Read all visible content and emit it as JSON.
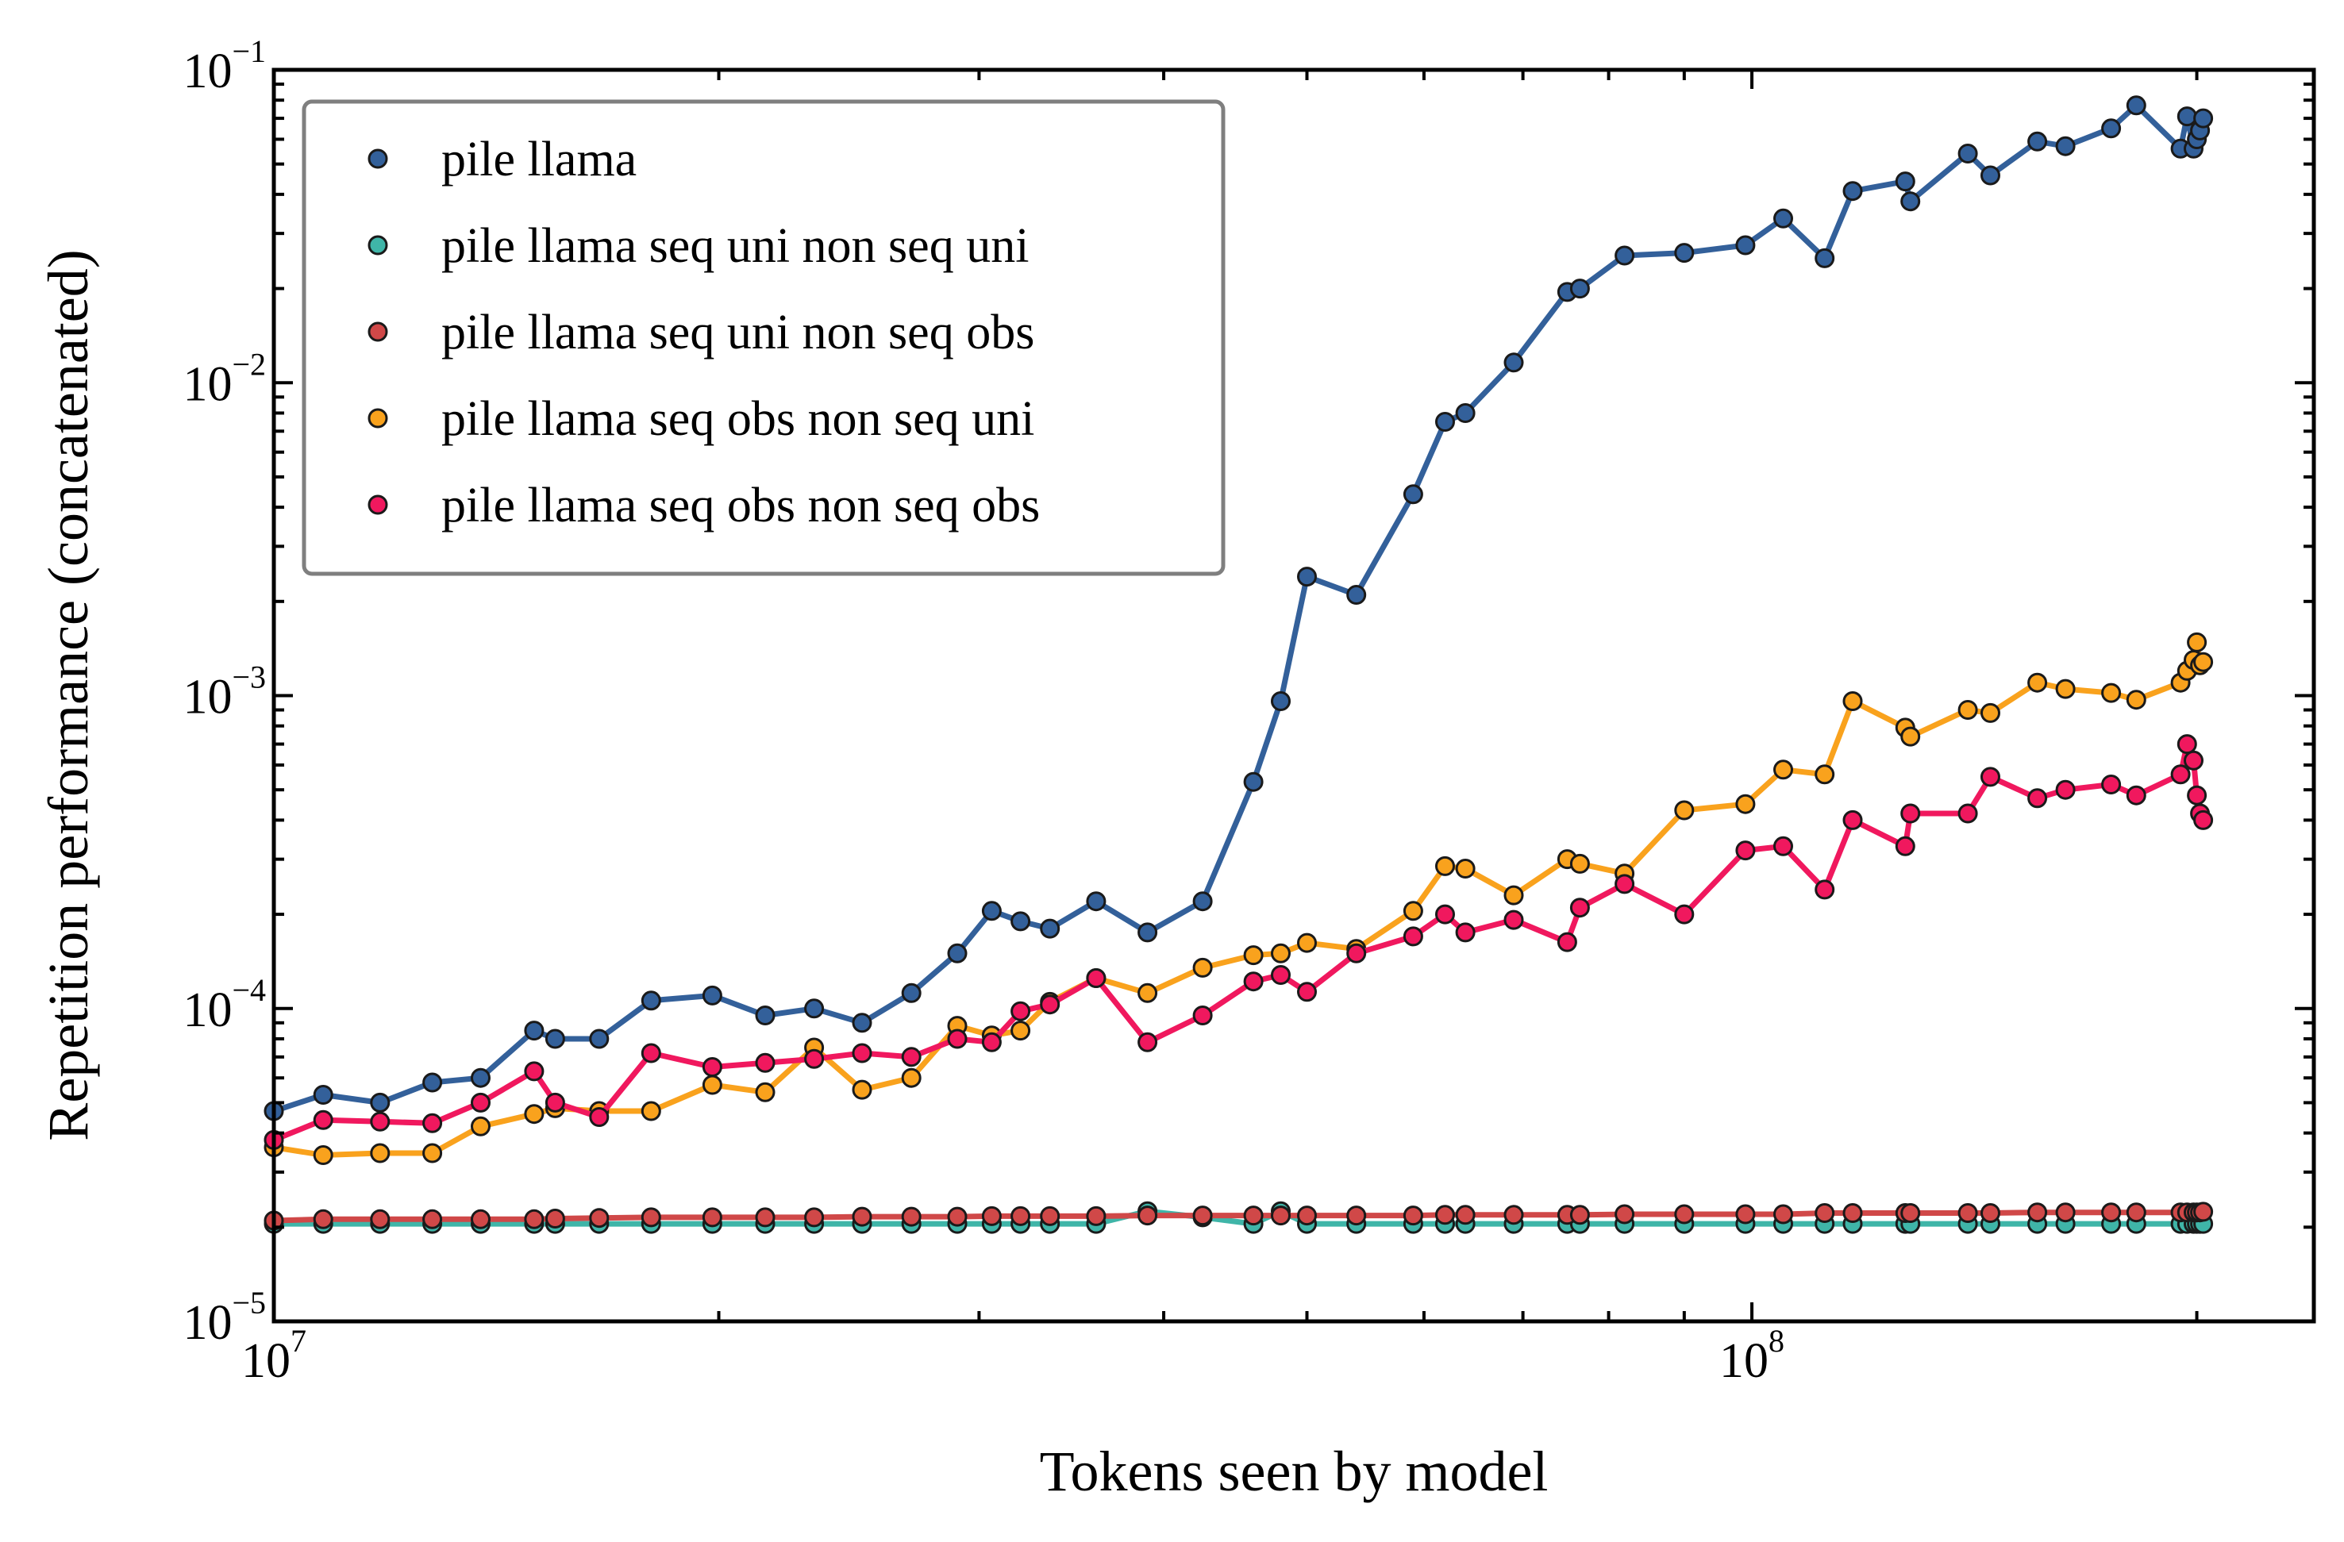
{
  "chart_data": {
    "type": "line",
    "title": "",
    "xlabel": "Tokens seen by model",
    "ylabel": "Repetition performance (concatenated)",
    "x_scale": "log",
    "y_scale": "log",
    "xlim": [
      10000000,
      240000000
    ],
    "ylim": [
      1e-05,
      0.1
    ],
    "x_ticks": [
      {
        "value": 10000000,
        "base": "10",
        "exp": "7"
      },
      {
        "value": 100000000,
        "base": "10",
        "exp": "8"
      }
    ],
    "y_ticks": [
      {
        "value": 1e-05,
        "base": "10",
        "exp": "−5"
      },
      {
        "value": 0.0001,
        "base": "10",
        "exp": "−4"
      },
      {
        "value": 0.001,
        "base": "10",
        "exp": "−3"
      },
      {
        "value": 0.01,
        "base": "10",
        "exp": "−2"
      },
      {
        "value": 0.1,
        "base": "10",
        "exp": "−1"
      }
    ],
    "grid": false,
    "legend_position": "top-left",
    "x": [
      10000000,
      10800000,
      11800000,
      12800000,
      13800000,
      15000000,
      15500000,
      16600000,
      18000000,
      19800000,
      21500000,
      23200000,
      25000000,
      27000000,
      29000000,
      30600000,
      32000000,
      33500000,
      36000000,
      39000000,
      42500000,
      46000000,
      48000000,
      50000000,
      54000000,
      59000000,
      62000000,
      64000000,
      69000000,
      75000000,
      76500000,
      82000000,
      90000000,
      99000000,
      105000000,
      112000000,
      117000000,
      127000000,
      128000000,
      140000000,
      145000000,
      156000000,
      163000000,
      175000000,
      182000000,
      195000000,
      197000000,
      199000000,
      200000000,
      201000000,
      202000000
    ],
    "series": [
      {
        "name": "pile llama",
        "color": "#33609a",
        "values": [
          4.7e-05,
          5.3e-05,
          5e-05,
          5.8e-05,
          6e-05,
          8.5e-05,
          8e-05,
          8e-05,
          0.000106,
          0.00011,
          9.5e-05,
          0.0001,
          9e-05,
          0.000112,
          0.00015,
          0.000205,
          0.00019,
          0.00018,
          0.00022,
          0.000175,
          0.00022,
          0.00053,
          0.00096,
          0.0024,
          0.0021,
          0.0044,
          0.0075,
          0.008,
          0.0116,
          0.0195,
          0.02,
          0.0255,
          0.026,
          0.0275,
          0.0335,
          0.025,
          0.041,
          0.044,
          0.038,
          0.054,
          0.046,
          0.059,
          0.057,
          0.065,
          0.077,
          0.056,
          0.071,
          0.056,
          0.06,
          0.064,
          0.07
        ]
      },
      {
        "name": "pile llama seq uni non seq uni",
        "color": "#3fb5a8",
        "values": [
          2.05e-05,
          2.05e-05,
          2.05e-05,
          2.05e-05,
          2.05e-05,
          2.05e-05,
          2.05e-05,
          2.05e-05,
          2.05e-05,
          2.05e-05,
          2.05e-05,
          2.05e-05,
          2.05e-05,
          2.05e-05,
          2.05e-05,
          2.05e-05,
          2.05e-05,
          2.05e-05,
          2.05e-05,
          2.25e-05,
          2.15e-05,
          2.05e-05,
          2.25e-05,
          2.05e-05,
          2.05e-05,
          2.05e-05,
          2.05e-05,
          2.05e-05,
          2.05e-05,
          2.05e-05,
          2.05e-05,
          2.05e-05,
          2.05e-05,
          2.05e-05,
          2.05e-05,
          2.05e-05,
          2.05e-05,
          2.05e-05,
          2.05e-05,
          2.05e-05,
          2.05e-05,
          2.05e-05,
          2.05e-05,
          2.05e-05,
          2.05e-05,
          2.05e-05,
          2.05e-05,
          2.05e-05,
          2.05e-05,
          2.05e-05,
          2.05e-05
        ]
      },
      {
        "name": "pile llama seq uni non seq obs",
        "color": "#d04848",
        "values": [
          2.1e-05,
          2.12e-05,
          2.12e-05,
          2.12e-05,
          2.12e-05,
          2.12e-05,
          2.13e-05,
          2.14e-05,
          2.15e-05,
          2.15e-05,
          2.15e-05,
          2.15e-05,
          2.16e-05,
          2.16e-05,
          2.16e-05,
          2.17e-05,
          2.17e-05,
          2.17e-05,
          2.17e-05,
          2.18e-05,
          2.18e-05,
          2.18e-05,
          2.18e-05,
          2.18e-05,
          2.18e-05,
          2.18e-05,
          2.19e-05,
          2.19e-05,
          2.19e-05,
          2.19e-05,
          2.19e-05,
          2.2e-05,
          2.2e-05,
          2.2e-05,
          2.2e-05,
          2.22e-05,
          2.22e-05,
          2.22e-05,
          2.22e-05,
          2.22e-05,
          2.22e-05,
          2.23e-05,
          2.23e-05,
          2.23e-05,
          2.23e-05,
          2.23e-05,
          2.23e-05,
          2.23e-05,
          2.23e-05,
          2.23e-05,
          2.24e-05
        ]
      },
      {
        "name": "pile llama seq obs non seq uni",
        "color": "#f9a21d",
        "values": [
          3.6e-05,
          3.4e-05,
          3.45e-05,
          3.45e-05,
          4.2e-05,
          4.6e-05,
          4.8e-05,
          4.7e-05,
          4.7e-05,
          5.7e-05,
          5.4e-05,
          7.5e-05,
          5.5e-05,
          6e-05,
          8.8e-05,
          8.2e-05,
          8.5e-05,
          0.000105,
          0.000125,
          0.000112,
          0.000135,
          0.000148,
          0.00015,
          0.000162,
          0.000155,
          0.000205,
          0.000285,
          0.00028,
          0.00023,
          0.0003,
          0.00029,
          0.00027,
          0.00043,
          0.00045,
          0.00058,
          0.00056,
          0.00096,
          0.00079,
          0.00074,
          0.0009,
          0.00088,
          0.0011,
          0.00105,
          0.00102,
          0.00097,
          0.0011,
          0.0012,
          0.0013,
          0.00148,
          0.00125,
          0.00128
        ]
      },
      {
        "name": "pile llama seq obs non seq obs",
        "color": "#f0185e",
        "values": [
          3.8e-05,
          4.4e-05,
          4.35e-05,
          4.3e-05,
          5e-05,
          6.3e-05,
          5e-05,
          4.5e-05,
          7.2e-05,
          6.5e-05,
          6.7e-05,
          6.9e-05,
          7.2e-05,
          7e-05,
          8e-05,
          7.8e-05,
          9.8e-05,
          0.000103,
          0.000125,
          7.8e-05,
          9.5e-05,
          0.000122,
          0.000128,
          0.000113,
          0.00015,
          0.00017,
          0.0002,
          0.000175,
          0.000192,
          0.000163,
          0.00021,
          0.00025,
          0.0002,
          0.00032,
          0.00033,
          0.00024,
          0.0004,
          0.00033,
          0.00042,
          0.00042,
          0.00055,
          0.00047,
          0.0005,
          0.00052,
          0.00048,
          0.00056,
          0.0007,
          0.00062,
          0.00048,
          0.00042,
          0.0004
        ]
      }
    ]
  }
}
